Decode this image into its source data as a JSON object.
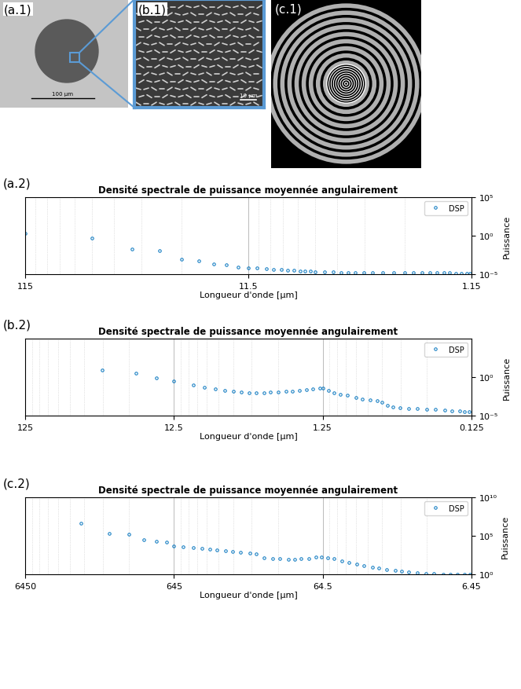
{
  "images": [
    {
      "annotation": "(a.1)",
      "scale_bar": "100 µm"
    },
    {
      "annotation": "(b.1)",
      "scale_bar": "10 µm"
    },
    {
      "annotation": "(c.1)"
    }
  ],
  "chart_data": [
    {
      "type": "scatter",
      "annotation": "(a.2)",
      "title": "Densité spectrale de puissance moyennée angulairement",
      "x_label": "Longueur d'onde [µm]",
      "y_label": "Puissance",
      "log": true,
      "grid": true,
      "legend": "upper right",
      "xlim": [
        115,
        1.15
      ],
      "xticks": [
        115,
        11.5,
        1.15
      ],
      "ylim": [
        1e-05,
        100000
      ],
      "yticks": [
        {
          "value": 100000,
          "label": "10⁵"
        },
        {
          "value": 1,
          "label": "10⁰"
        },
        {
          "value": 1e-05,
          "label": "10⁻⁵"
        }
      ],
      "series": [
        {
          "name": "DSP",
          "color": "#0072bd",
          "marker": "circle",
          "x": [
            115,
            57.5,
            38.3,
            28.8,
            23,
            19.2,
            16.4,
            14.4,
            12.8,
            11.5,
            10.5,
            9.58,
            8.85,
            8.21,
            7.67,
            7.19,
            6.76,
            6.39,
            6.05,
            5.75,
            5.23,
            4.79,
            4.42,
            4.11,
            3.83,
            3.48,
            3.19,
            2.88,
            2.56,
            2.3,
            2.09,
            1.92,
            1.77,
            1.64,
            1.53,
            1.44,
            1.35,
            1.28,
            1.21,
            1.17
          ],
          "values": [
            2,
            0.5,
            0.02,
            0.012,
            0.0008,
            0.0006,
            0.0002,
            0.00015,
            8e-05,
            7e-05,
            6e-05,
            5e-05,
            4.5e-05,
            4e-05,
            3.5e-05,
            3e-05,
            2.8e-05,
            2.6e-05,
            2.4e-05,
            2.2e-05,
            2e-05,
            1.8e-05,
            1.7e-05,
            1.6e-05,
            1.6e-05,
            1.6e-05,
            1.6e-05,
            1.6e-05,
            1.5e-05,
            1.5e-05,
            1.5e-05,
            1.5e-05,
            1.5e-05,
            1.5e-05,
            1.5e-05,
            1.5e-05,
            1.4e-05,
            1.4e-05,
            1.4e-05,
            1.4e-05
          ]
        }
      ]
    },
    {
      "type": "scatter",
      "annotation": "(b.2)",
      "title": "Densité spectrale de puissance moyennée angulairement",
      "x_label": "Longueur d'onde [µm]",
      "y_label": "Puissance",
      "log": true,
      "grid": true,
      "legend": "upper right",
      "xlim": [
        125,
        0.125
      ],
      "xticks": [
        125,
        12.5,
        1.25,
        0.125
      ],
      "ylim": [
        1e-05,
        100000
      ],
      "yticks": [
        {
          "value": 1,
          "label": "10⁰"
        },
        {
          "value": 1e-05,
          "label": "10⁻⁵"
        }
      ],
      "series": [
        {
          "name": "DSP",
          "color": "#0072bd",
          "marker": "circle",
          "x": [
            38,
            22.5,
            16.5,
            12.5,
            9.3,
            7.8,
            6.6,
            5.7,
            5.0,
            4.4,
            3.9,
            3.5,
            3.1,
            2.8,
            2.5,
            2.2,
            2.0,
            1.8,
            1.6,
            1.45,
            1.3,
            1.25,
            1.15,
            1.05,
            0.95,
            0.85,
            0.75,
            0.68,
            0.6,
            0.54,
            0.5,
            0.46,
            0.42,
            0.38,
            0.33,
            0.29,
            0.25,
            0.22,
            0.19,
            0.17,
            0.15,
            0.14,
            0.13
          ],
          "values": [
            8,
            3,
            0.8,
            0.3,
            0.1,
            0.05,
            0.03,
            0.02,
            0.015,
            0.012,
            0.01,
            0.01,
            0.01,
            0.011,
            0.012,
            0.013,
            0.015,
            0.018,
            0.022,
            0.028,
            0.035,
            0.04,
            0.02,
            0.01,
            0.006,
            0.004,
            0.002,
            0.0015,
            0.001,
            0.0008,
            0.0005,
            0.0002,
            0.00012,
            0.0001,
            9e-05,
            8e-05,
            7e-05,
            6e-05,
            5e-05,
            4.5e-05,
            4e-05,
            3.5e-05,
            3e-05
          ]
        }
      ]
    },
    {
      "type": "scatter",
      "annotation": "(c.2)",
      "title": "Densité spectrale de puissance moyennée angulairement",
      "x_label": "Longueur d'onde [µm]",
      "y_label": "Puissance",
      "log": true,
      "grid": true,
      "legend": "upper right",
      "xlim": [
        6450,
        6.45
      ],
      "xticks": [
        6450,
        645,
        64.5,
        6.45
      ],
      "ylim": [
        1,
        10000000000
      ],
      "yticks": [
        {
          "value": 10000000000,
          "label": "10¹⁰"
        },
        {
          "value": 100000,
          "label": "10⁵"
        },
        {
          "value": 1,
          "label": "10⁰"
        }
      ],
      "series": [
        {
          "name": "DSP",
          "color": "#0072bd",
          "marker": "circle",
          "x": [
            2730,
            1750,
            1300,
            1030,
            845,
            725,
            645,
            560,
            480,
            420,
            370,
            330,
            290,
            260,
            230,
            200,
            180,
            160,
            140,
            125,
            110,
            100,
            90,
            80,
            72,
            66,
            60,
            54,
            48,
            43,
            38,
            34,
            30,
            27,
            24,
            21,
            19,
            17,
            15,
            13,
            11.5,
            10,
            9,
            8,
            7.2,
            6.6
          ],
          "values": [
            4000000,
            200000,
            150000,
            30000,
            20000,
            15000,
            5000,
            4000,
            3000,
            2500,
            2000,
            1600,
            1200,
            1000,
            800,
            600,
            400,
            150,
            120,
            100,
            90,
            90,
            100,
            120,
            160,
            180,
            140,
            100,
            60,
            35,
            20,
            12,
            8,
            6,
            4,
            3,
            2.5,
            2,
            1.6,
            1.4,
            1.2,
            1.1,
            1.05,
            1.02,
            1.01,
            1.01
          ]
        }
      ]
    }
  ]
}
